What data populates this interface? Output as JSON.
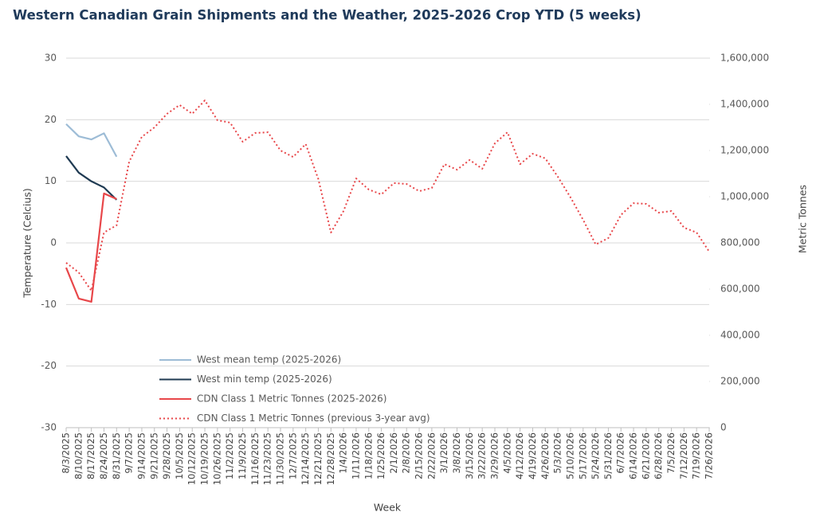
{
  "chart_data": {
    "type": "line",
    "title": "Western Canadian Grain Shipments and the Weather, 2025-2026  Crop YTD (5 weeks)",
    "x_label": "Week",
    "y_label": "Temperature (Celcius)",
    "y2_label": "Metric Tonnes",
    "categories": [
      "8/3/2025",
      "8/10/2025",
      "8/17/2025",
      "8/24/2025",
      "8/31/2025",
      "9/7/2025",
      "9/14/2025",
      "9/21/2025",
      "9/28/2025",
      "10/5/2025",
      "10/12/2025",
      "10/19/2025",
      "10/26/2025",
      "11/2/2025",
      "11/9/2025",
      "11/16/2025",
      "11/23/2025",
      "11/30/2025",
      "12/7/2025",
      "12/14/2025",
      "12/21/2025",
      "12/28/2025",
      "1/4/2026",
      "1/11/2026",
      "1/18/2026",
      "1/25/2026",
      "2/1/2026",
      "2/8/2026",
      "2/15/2026",
      "2/22/2026",
      "3/1/2026",
      "3/8/2026",
      "3/15/2026",
      "3/22/2026",
      "3/29/2026",
      "4/5/2026",
      "4/12/2026",
      "4/19/2026",
      "4/26/2026",
      "5/3/2026",
      "5/10/2026",
      "5/17/2026",
      "5/24/2026",
      "5/31/2026",
      "6/7/2026",
      "6/14/2026",
      "6/21/2026",
      "6/28/2026",
      "7/5/2026",
      "7/12/2026",
      "7/19/2026",
      "7/26/2026"
    ],
    "series": [
      {
        "name": "West mean temp (2025-2026)",
        "color": "#9dbcd6",
        "style": "solid",
        "values": [
          19.3,
          17.3,
          16.8,
          17.8,
          14.0,
          null,
          null,
          null,
          null,
          null,
          null,
          null,
          null,
          null,
          null,
          null,
          null,
          null,
          null,
          null,
          null,
          null,
          null,
          null,
          null,
          null,
          null,
          null,
          null,
          null,
          null,
          null,
          null,
          null,
          null,
          null,
          null,
          null,
          null,
          null,
          null,
          null,
          null,
          null,
          null,
          null,
          null,
          null,
          null,
          null,
          null,
          null
        ]
      },
      {
        "name": "West min temp (2025-2026)",
        "color": "#1f3a52",
        "style": "solid",
        "values": [
          14.1,
          11.4,
          10.0,
          9.0,
          7.0,
          null,
          null,
          null,
          null,
          null,
          null,
          null,
          null,
          null,
          null,
          null,
          null,
          null,
          null,
          null,
          null,
          null,
          null,
          null,
          null,
          null,
          null,
          null,
          null,
          null,
          null,
          null,
          null,
          null,
          null,
          null,
          null,
          null,
          null,
          null,
          null,
          null,
          null,
          null,
          null,
          null,
          null,
          null,
          null,
          null,
          null,
          null
        ]
      },
      {
        "name": "CDN Class 1 Metric Tonnes (2025-2026)",
        "color": "#e8474a",
        "style": "solid",
        "axis": "y2",
        "values": [
          693000,
          559000,
          545000,
          1014000,
          990000,
          null,
          null,
          null,
          null,
          null,
          null,
          null,
          null,
          null,
          null,
          null,
          null,
          null,
          null,
          null,
          null,
          null,
          null,
          null,
          null,
          null,
          null,
          null,
          null,
          null,
          null,
          null,
          null,
          null,
          null,
          null,
          null,
          null,
          null,
          null,
          null,
          null,
          null,
          null,
          null,
          null,
          null,
          null,
          null,
          null,
          null,
          null
        ]
      },
      {
        "name": "CDN Class 1 Metric Tonnes (previous 3-year avg)",
        "color": "#e8474a",
        "style": "dotted",
        "axis": "y2",
        "values": [
          714000,
          672000,
          593000,
          845000,
          876000,
          1152000,
          1259000,
          1300000,
          1359000,
          1397000,
          1359000,
          1417000,
          1331000,
          1321000,
          1238000,
          1276000,
          1279000,
          1200000,
          1172000,
          1228000,
          1076000,
          845000,
          938000,
          1079000,
          1031000,
          1010000,
          1059000,
          1055000,
          1024000,
          1038000,
          1141000,
          1117000,
          1159000,
          1121000,
          1231000,
          1279000,
          1141000,
          1186000,
          1166000,
          1086000,
          997000,
          900000,
          793000,
          821000,
          921000,
          972000,
          969000,
          931000,
          938000,
          866000,
          845000,
          762000
        ]
      }
    ],
    "ylim": [
      -30,
      30
    ],
    "yticks": [
      -30,
      -20,
      -10,
      0,
      10,
      20,
      30
    ],
    "y2lim": [
      0,
      1600000
    ],
    "y2ticks": [
      0,
      {
        "value": 200000,
        "label": "200,000"
      },
      {
        "value": 400000,
        "label": "400,000"
      },
      {
        "value": 600000,
        "label": "600,000"
      },
      {
        "value": 800000,
        "label": "800,000"
      },
      {
        "value": 1000000,
        "label": "1,000,000"
      },
      {
        "value": 1200000,
        "label": "1,200,000"
      },
      {
        "value": 1400000,
        "label": "1,400,000"
      },
      {
        "value": 1600000,
        "label": "1,600,000"
      }
    ],
    "grid": true,
    "legend": "lower left"
  }
}
